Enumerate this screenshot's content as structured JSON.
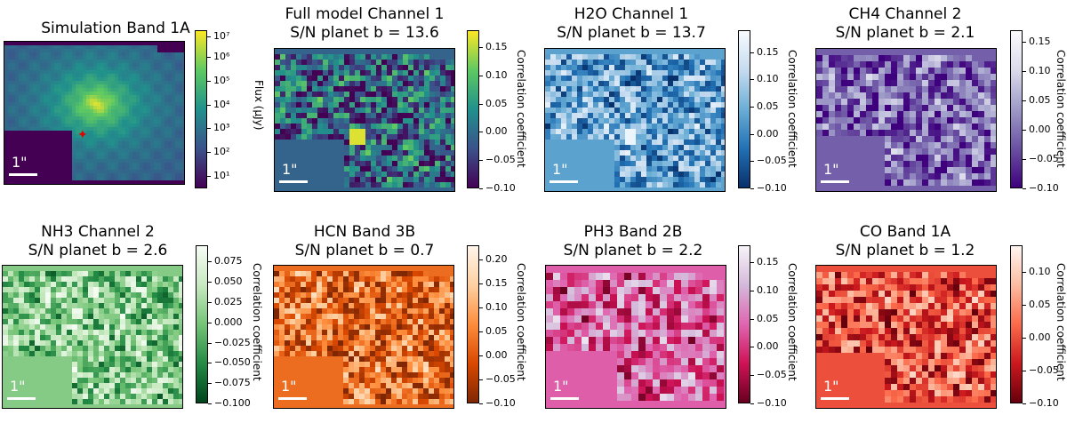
{
  "chart_data": [
    {
      "type": "heatmap",
      "title": "Simulation Band 1A",
      "subtitle": "",
      "colormap": "viridis",
      "colorbar_label": "Flux (μJy)",
      "colorbar_ticks": [
        "10⁷",
        "10⁶",
        "10⁵",
        "10⁴",
        "10³",
        "10²",
        "10¹"
      ],
      "clim": [
        5,
        20000000
      ],
      "scale": "log",
      "scale_bar": "1\"",
      "marker": "red star"
    },
    {
      "type": "heatmap",
      "title": "Full model Channel 1",
      "subtitle": "S/N planet b = 13.6",
      "colormap": "viridis",
      "colorbar_label": "Correlation coefficient",
      "colorbar_ticks": [
        "0.15",
        "0.10",
        "0.05",
        "0.00",
        "−0.05",
        "−0.10"
      ],
      "clim": [
        -0.1,
        0.18
      ],
      "scale_bar": "1\""
    },
    {
      "type": "heatmap",
      "title": "H2O Channel 1",
      "subtitle": "S/N planet b = 13.7",
      "colormap": "Blues",
      "colorbar_label": "Correlation coefficient",
      "colorbar_ticks": [
        "0.15",
        "0.10",
        "0.05",
        "0.00",
        "−0.05",
        "−0.10"
      ],
      "clim": [
        -0.1,
        0.19
      ],
      "scale_bar": "1\""
    },
    {
      "type": "heatmap",
      "title": "CH4 Channel 2",
      "subtitle": "S/N planet b = 2.1",
      "colormap": "Purples",
      "colorbar_label": "Correlation coefficient",
      "colorbar_ticks": [
        "0.15",
        "0.10",
        "0.05",
        "0.00",
        "−0.05",
        "−0.10"
      ],
      "clim": [
        -0.1,
        0.17
      ],
      "scale_bar": "1\""
    },
    {
      "type": "heatmap",
      "title": "NH3 Channel 2",
      "subtitle": "S/N planet b = 2.6",
      "colormap": "Greens",
      "colorbar_label": "Correlation coefficient",
      "colorbar_ticks": [
        "0.075",
        "0.050",
        "0.025",
        "0.000",
        "−0.025",
        "−0.050",
        "−0.075",
        "−0.100"
      ],
      "clim": [
        -0.1,
        0.095
      ],
      "scale_bar": "1\""
    },
    {
      "type": "heatmap",
      "title": "HCN Band 3B",
      "subtitle": "S/N planet b = 0.7",
      "colormap": "Oranges",
      "colorbar_label": "Correlation coefficient",
      "colorbar_ticks": [
        "0.20",
        "0.15",
        "0.10",
        "0.05",
        "0.00",
        "−0.05",
        "−0.10"
      ],
      "clim": [
        -0.1,
        0.23
      ],
      "scale_bar": "1\""
    },
    {
      "type": "heatmap",
      "title": "PH3 Band 2B",
      "subtitle": "S/N planet b = 2.2",
      "colormap": "PuRd",
      "colorbar_label": "Correlation coefficient",
      "colorbar_ticks": [
        "0.15",
        "0.10",
        "0.05",
        "0.00",
        "−0.05",
        "−0.10"
      ],
      "clim": [
        -0.1,
        0.18
      ],
      "scale_bar": "1\""
    },
    {
      "type": "heatmap",
      "title": "CO Band 1A",
      "subtitle": "S/N planet b = 1.2",
      "colormap": "Reds",
      "colorbar_label": "Correlation coefficient",
      "colorbar_ticks": [
        "0.10",
        "0.05",
        "0.00",
        "−0.05",
        "−0.10"
      ],
      "clim": [
        -0.1,
        0.14
      ],
      "scale_bar": "1\""
    }
  ],
  "colors": {
    "viridis": [
      "#440154",
      "#3b528b",
      "#21918c",
      "#5ec962",
      "#fde725"
    ],
    "Blues": [
      "#08306b",
      "#2171b5",
      "#6baed6",
      "#c6dbef",
      "#f7fbff"
    ],
    "Purples": [
      "#3f007d",
      "#6a51a3",
      "#9e9ac8",
      "#dadaeb",
      "#fcfbfd"
    ],
    "Greens": [
      "#00441b",
      "#238b45",
      "#74c476",
      "#c7e9c0",
      "#f7fcf5"
    ],
    "Oranges": [
      "#7f2704",
      "#d94801",
      "#fd8d3c",
      "#fdd0a2",
      "#fff5eb"
    ],
    "PuRd": [
      "#67001f",
      "#ce1256",
      "#df65b0",
      "#d4b9da",
      "#f7f4f9"
    ],
    "Reds": [
      "#67000d",
      "#cb181d",
      "#fb6a4a",
      "#fcbba1",
      "#fff5f0"
    ]
  }
}
